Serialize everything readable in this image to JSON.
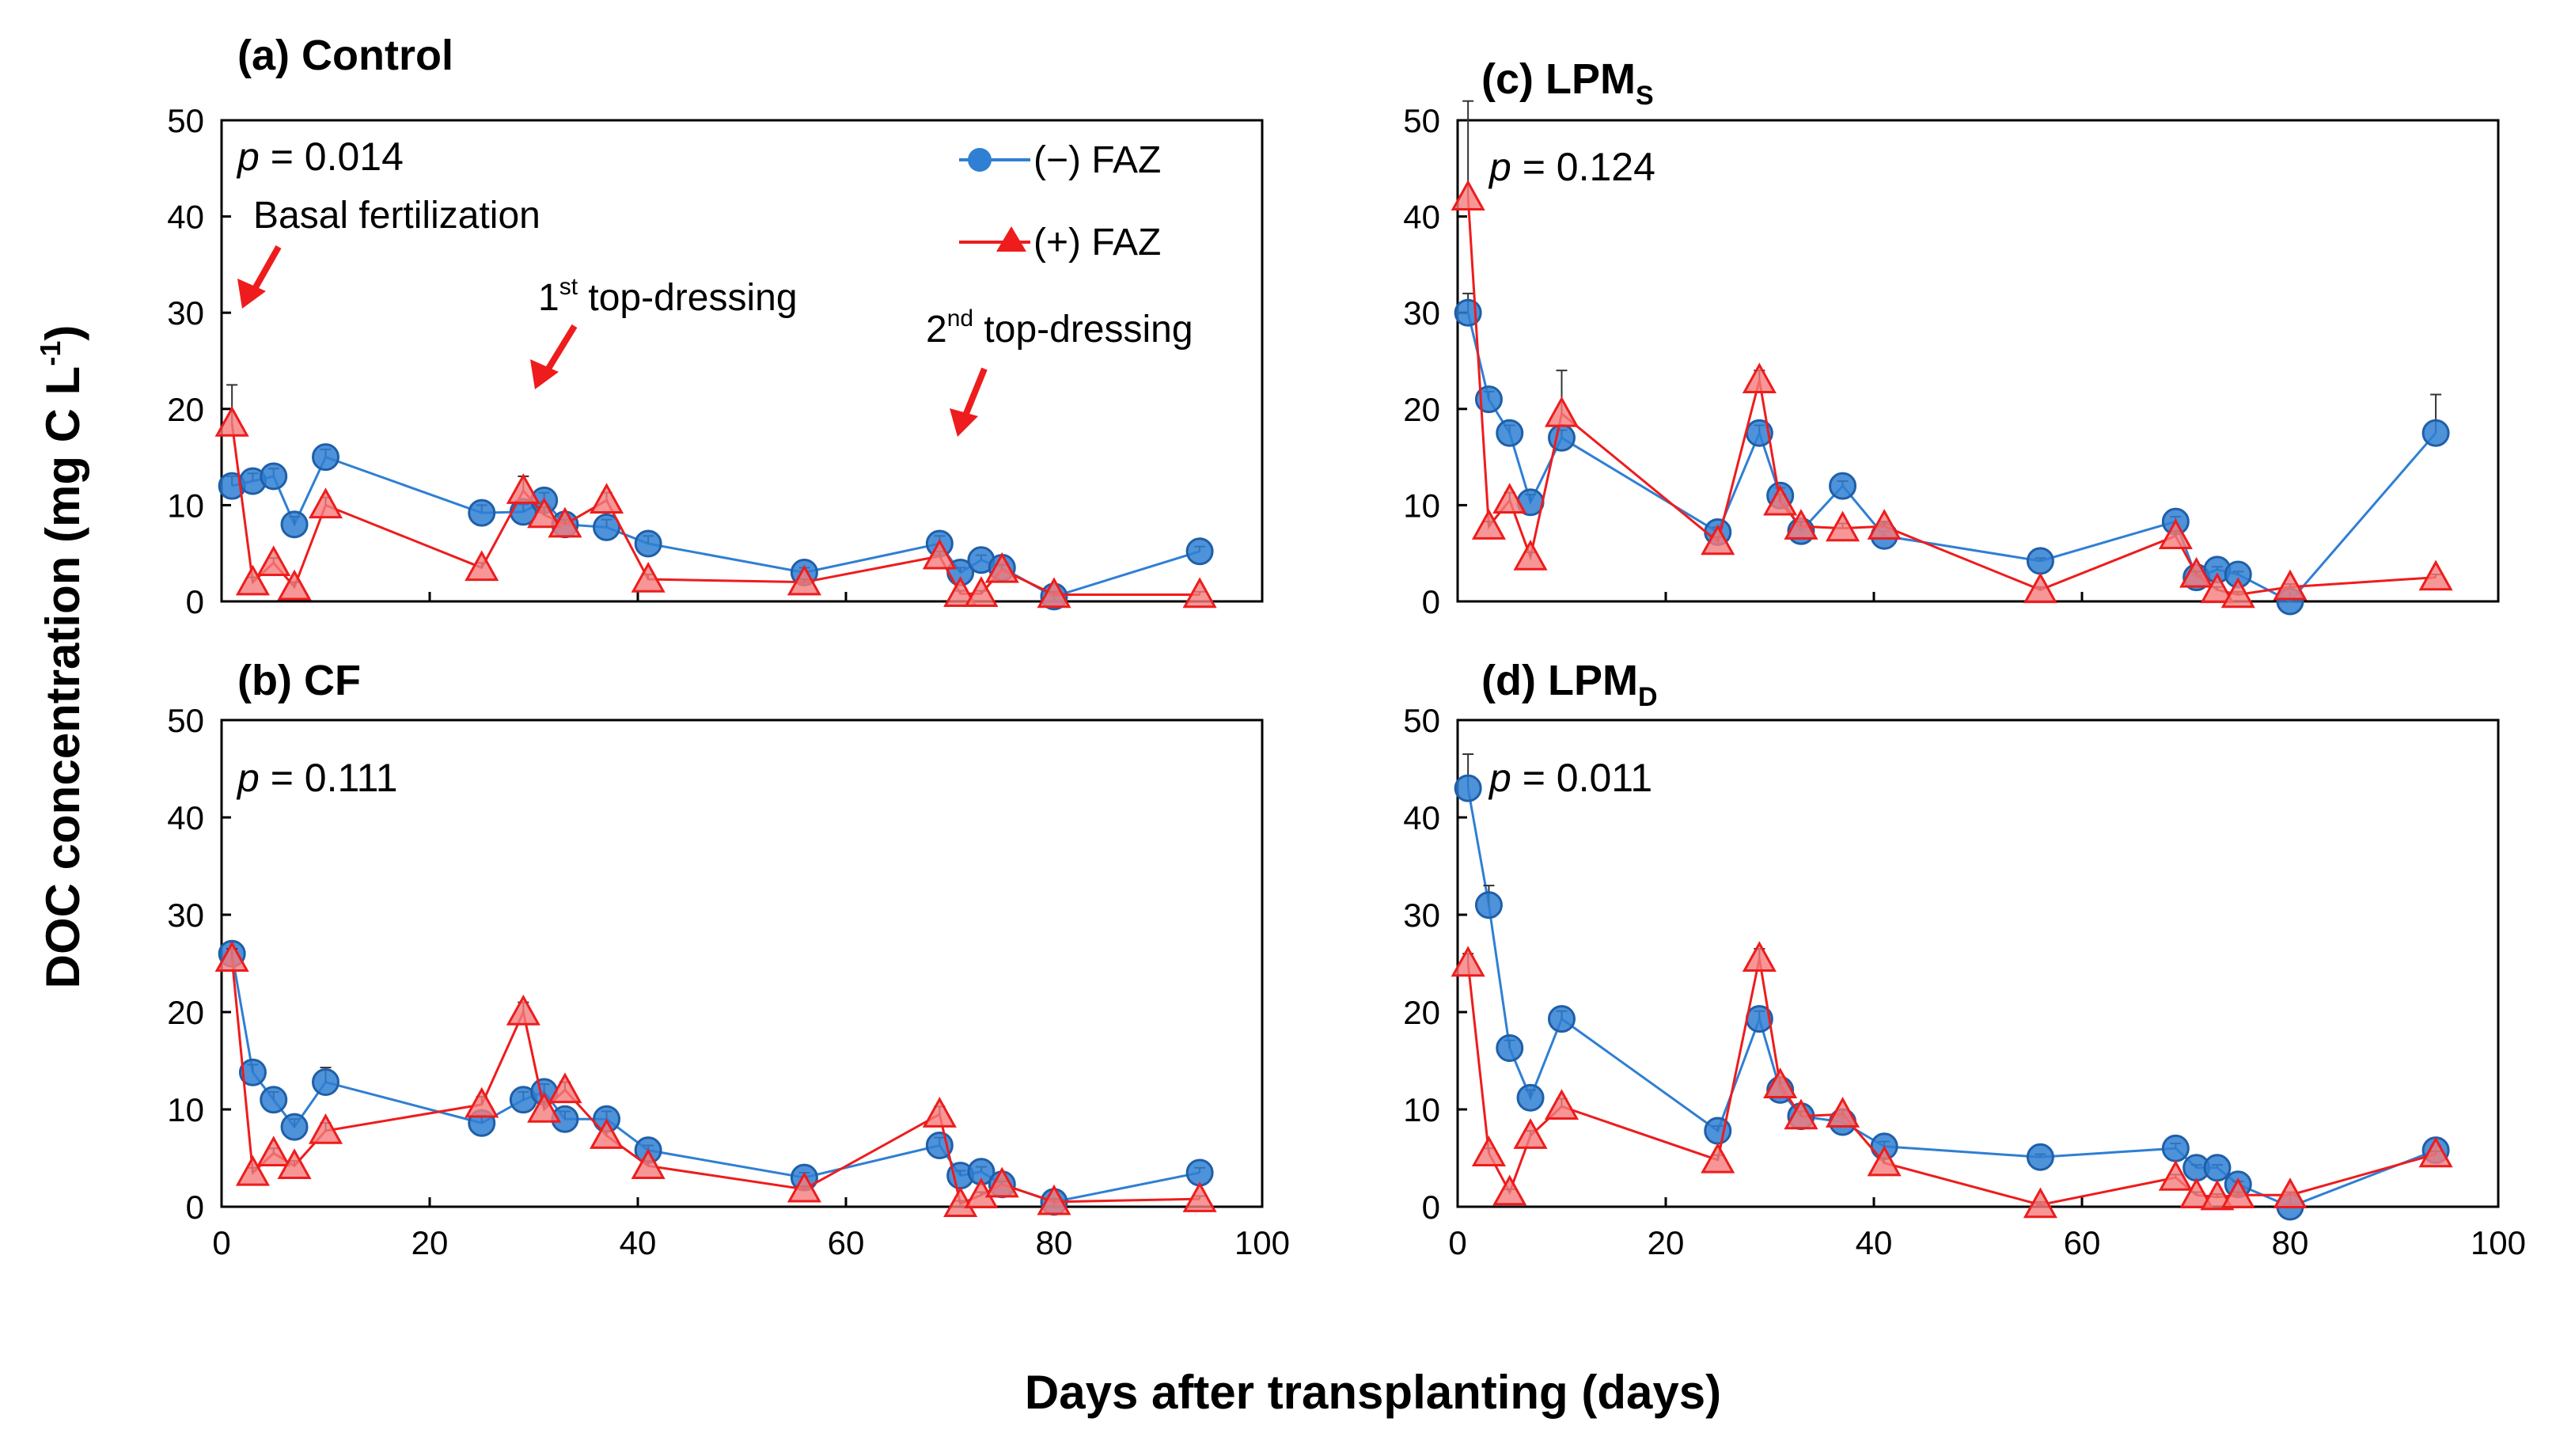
{
  "chart_data": {
    "type": "line",
    "xlabel": "Days after transplanting (days)",
    "ylabel": "DOC concentration (mg C L",
    "ylabel_sup": "-1",
    "ylabel_close": ")",
    "xlim": [
      0,
      100
    ],
    "ylim": [
      0,
      50
    ],
    "x_ticks": [
      0,
      20,
      40,
      60,
      80,
      100
    ],
    "y_ticks": [
      0,
      10,
      20,
      30,
      40,
      50
    ],
    "legend": [
      {
        "name": "(−) FAZ",
        "color": "#2f7fd3",
        "marker": "circle"
      },
      {
        "name": "(+) FAZ",
        "color": "#ee1c1c",
        "marker": "triangle"
      }
    ],
    "panels": [
      {
        "title": "(a) Control",
        "title_sub": "",
        "p_label": "p",
        "p_value": " = 0.014",
        "annotations": [
          {
            "text": "Basal fertilization",
            "sup": "",
            "rest": ""
          },
          {
            "text": "1",
            "sup": "st",
            "rest": " top-dressing"
          },
          {
            "text": "2",
            "sup": "nd",
            "rest": " top-dressing"
          }
        ],
        "series": [
          {
            "name": "(−) FAZ",
            "x": [
              1,
              3,
              5,
              7,
              10,
              25,
              29,
              31,
              33,
              37,
              41,
              56,
              69,
              71,
              73,
              75,
              80,
              94
            ],
            "y": [
              12,
              12.5,
              13,
              8,
              15,
              9.2,
              9.3,
              10.5,
              8,
              7.7,
              6,
              3,
              6,
              3,
              4.3,
              3.5,
              0.5,
              5.2
            ],
            "err": [
              1,
              0.8,
              0.8,
              0.8,
              0.8,
              0.8,
              0.8,
              0.8,
              0.8,
              0.8,
              0.8,
              0.5,
              0.8,
              0.5,
              0.5,
              0.5,
              0.3,
              0.5
            ]
          },
          {
            "name": "(+) FAZ",
            "x": [
              1,
              3,
              5,
              7,
              10,
              25,
              29,
              31,
              33,
              37,
              41,
              56,
              69,
              71,
              73,
              75,
              80,
              94
            ],
            "y": [
              18.5,
              2,
              4,
              1.5,
              10,
              3.5,
              11.5,
              9,
              8,
              10.5,
              2.3,
              2,
              4.7,
              0.8,
              0.8,
              3.3,
              0.7,
              0.7
            ],
            "err": [
              4,
              0.5,
              0.5,
              0.5,
              0.8,
              0.5,
              1.5,
              0.8,
              0.5,
              0.8,
              0.5,
              0.3,
              0.5,
              0.3,
              0.3,
              0.5,
              0.3,
              0.3
            ]
          }
        ]
      },
      {
        "title": "(b) CF",
        "title_sub": "",
        "p_label": "p",
        "p_value": " = 0.111",
        "annotations": [],
        "series": [
          {
            "name": "(−) FAZ",
            "x": [
              1,
              3,
              5,
              7,
              10,
              25,
              29,
              31,
              33,
              37,
              41,
              56,
              69,
              71,
              73,
              75,
              80,
              94
            ],
            "y": [
              26,
              13.8,
              11,
              8.2,
              12.8,
              8.6,
              11,
              11.8,
              9,
              9,
              5.8,
              3,
              6.3,
              3.2,
              3.6,
              2.3,
              0.5,
              3.5
            ],
            "err": [
              1.2,
              0.8,
              0.8,
              0.8,
              1.5,
              0.8,
              0.8,
              0.8,
              0.8,
              0.8,
              0.5,
              0.5,
              0.8,
              0.5,
              0.5,
              0.5,
              0.3,
              0.5
            ]
          },
          {
            "name": "(+) FAZ",
            "x": [
              1,
              3,
              5,
              7,
              10,
              25,
              29,
              31,
              33,
              37,
              41,
              56,
              69,
              71,
              73,
              75,
              80,
              94
            ],
            "y": [
              25.5,
              3.5,
              5.5,
              4.2,
              7.8,
              10.5,
              20,
              10,
              12,
              7.3,
              4.2,
              1.8,
              9.5,
              0.3,
              1.2,
              2.3,
              0.5,
              0.8
            ],
            "err": [
              1,
              0.5,
              0.5,
              0.5,
              0.8,
              0.8,
              1,
              0.8,
              0.8,
              0.5,
              0.5,
              0.3,
              0.8,
              0.3,
              0.3,
              0.3,
              0.3,
              0.3
            ]
          }
        ]
      },
      {
        "title": "(c) LPM",
        "title_sub": "S",
        "p_label": "p",
        "p_value": " = 0.124",
        "annotations": [],
        "series": [
          {
            "name": "(−) FAZ",
            "x": [
              1,
              3,
              5,
              7,
              10,
              25,
              29,
              31,
              33,
              37,
              41,
              56,
              69,
              71,
              73,
              75,
              80,
              94
            ],
            "y": [
              30,
              21,
              17.5,
              10.3,
              17,
              7.2,
              17.5,
              11,
              7.3,
              12,
              6.8,
              4.2,
              8.3,
              2.5,
              3.3,
              2.8,
              0,
              17.5
            ],
            "err": [
              2,
              0.8,
              0.8,
              0.8,
              0.8,
              0.5,
              0.8,
              0.8,
              0.5,
              0.5,
              0.5,
              0.3,
              0.5,
              0.3,
              0.3,
              0.3,
              0.3,
              4
            ]
          },
          {
            "name": "(+) FAZ",
            "x": [
              1,
              3,
              5,
              7,
              10,
              25,
              29,
              31,
              33,
              37,
              41,
              56,
              69,
              71,
              73,
              75,
              80,
              94
            ],
            "y": [
              42,
              7.8,
              10.5,
              4.6,
              19.5,
              6.2,
              23,
              10.3,
              7.8,
              7.6,
              7.8,
              1.2,
              6.8,
              2.8,
              1.2,
              0.7,
              1.5,
              2.5
            ],
            "err": [
              10,
              0.5,
              0.8,
              0.5,
              4.5,
              0.5,
              1,
              0.8,
              0.5,
              0.5,
              0.5,
              0.3,
              0.5,
              0.3,
              0.3,
              0.3,
              0.3,
              0.3
            ]
          }
        ]
      },
      {
        "title": "(d) LPM",
        "title_sub": "D",
        "p_label": "p",
        "p_value": " = 0.011",
        "annotations": [],
        "series": [
          {
            "name": "(−) FAZ",
            "x": [
              1,
              3,
              5,
              7,
              10,
              25,
              29,
              31,
              33,
              37,
              41,
              56,
              69,
              71,
              73,
              75,
              80,
              94
            ],
            "y": [
              43,
              31,
              16.3,
              11.2,
              19.3,
              7.8,
              19.3,
              12,
              9.3,
              8.7,
              6.2,
              5.1,
              6,
              4,
              4,
              2.3,
              0,
              5.8
            ],
            "err": [
              3.5,
              2,
              0.8,
              0.8,
              0.8,
              0.5,
              0.8,
              0.8,
              0.5,
              0.5,
              0.5,
              0.3,
              0.5,
              0.3,
              0.3,
              0.3,
              0.3,
              0.5
            ]
          },
          {
            "name": "(+) FAZ",
            "x": [
              1,
              3,
              5,
              7,
              10,
              25,
              29,
              31,
              33,
              37,
              41,
              56,
              69,
              71,
              73,
              75,
              80,
              94
            ],
            "y": [
              25,
              5.5,
              1.5,
              7.3,
              10.3,
              4.8,
              25.5,
              12.5,
              9.3,
              9.5,
              4.5,
              0.2,
              3,
              1.2,
              1,
              1.2,
              1.2,
              5.4
            ],
            "err": [
              1,
              0.5,
              0.3,
              0.5,
              0.8,
              0.5,
              1,
              0.8,
              0.5,
              0.5,
              0.5,
              0.3,
              0.3,
              0.3,
              0.3,
              0.3,
              0.3,
              0.3
            ]
          }
        ]
      }
    ]
  }
}
